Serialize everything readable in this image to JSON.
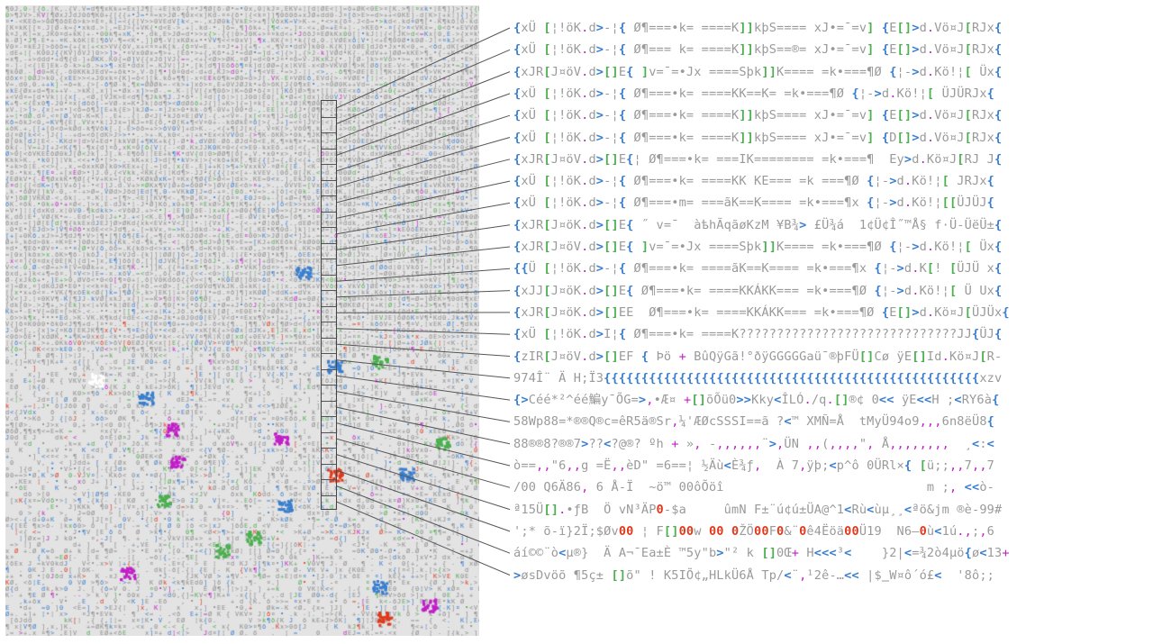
{
  "palette": {
    "grey": "#9a9a9a",
    "blue": "#3a7fcf",
    "green": "#4caf50",
    "purple": "#c21ec9",
    "red": "#e0381b"
  },
  "glyph_rows": [
    "{xÜ [¦!öK.d>-¦{ Ø¶===•k= ====K]]kþS==== xJ•=¯=v] {E[]>d.Vö¤J[RJx{",
    "{xÜ [¦!öK.d>-¦{ Ø¶=== k= ====K]]kþS==®= xJ•=¯=v] {E[]>d.Vö¤J[RJx{",
    "{xJR[J¤öV.d>[]E{ ]v=¯=•Jx ====Sþk]]K==== =k•===¶Ø {¦->d.Kö!¦[ Üx{",
    "{xÜ [¦!öK.d>-¦{ Ø¶===•k= ====KK==K= =k•===¶Ø {¦->d.Kö!¦[ ÜJÜRJx{",
    "{xÜ [¦!öK.d>-¦{ Ø¶===•k= ====K]]kþS==== xJ•=¯=v] {E[]>d.Vö¤J[RJx{",
    "{xÜ [¦!öK.d>-¦{ Ø¶===•k= ====K]]kþS==== xJ•=¯=v] {D[]>d.Vö¤J[RJx{",
    "{xJR[J¤öV.d>[]E{¦ Ø¶===•k= ===IK======== =k•===¶  Ey>d.Kö¤J[RJ J{",
    "{xÜ [¦!öK.d>-¦{ Ø¶===•k= ====KK KE=== =k ===¶Ø {¦->d.Kö!¦[ JRJx{",
    "{xÜ [¦!öK.d>-¦{ Ø¶===•m= ===ãK==K==== =k•===¶x {¦->d.Kö!¦[[ÜJÜJ{",
    "{xJR[J¤öK.d>[]E{ ˝ v=¯  àѣhÃqãøKzM ¥B¾> £Ü¾á  1¢Ü¢Î˝™Å§ f·Ü-ÜëÜ±{",
    "{xJR[J¤öV.d>[]E{ ]v=¯=•Jx ====Sþk]]K==== =k•===¶Ø {¦->d.Kö!¦[ Üx{",
    "{{Ü [¦!öK.d>-¦{ Ø¶===•k= ====ãK==K==== =k•===¶x {¦->d.K[! [ÜJÜ x{",
    "{xJJ[J¤öK.d>[]E{ Ø¶===•k= ====KKÁKK=== =k•===¶Ø {¦->d.Kö!¦[ Ü Ux{",
    "{xJR[J¤öK.d>[]EE  Ø¶===•k= ====KKÁKK=== =k•===¶Ø {E[]>d.Kö¤J[ÜJÜx{",
    "{xÜ [¦!öK.d>I¦{ Ø¶===•k= ====K?????????????????????????????JJ{ÜJ{",
    "{zIR[J¤öV.d>[]EF { Þö + BûQÿGã!°ðÿGGGGGaü¯®þFÜ[]Cø ÿE[]Id.Kö¤J[R-",
    "974Î¨ Ä H;Ï3{{{{{{{{{{{{{{{{{{{{{{{{{{{{{{{{{{{{{{{{{{{{{{{{{{xzv",
    "{>Céé*²^éé鯿y¯ÕG=>,•Æ¤ +[]õÕü0>>Kky<ÎLÓ./q.[]®¢ 0<< ÿE<<H ;<RY6à{",
    "58Wp88=*®®Q®c=êR5ä®Sr,¼'ÆØcSSSI==ã ?<™ XMÑ=Å  tMyÜ94o9,,,6n8ëÜ8{",
    "88®®8?®®7>??<?@®? ºh + », -,,,,,,¨>,ÜN ,,(,,,,\", Å,,,,,,,,  ¸<:<",
    "ò==,,\"6,,g =Ë,,èD\" =6==¦ ½Äù<È¾ƒ,  À 7,ÿþ;<p^ô 0ÜRl×{ [ü;;,,7,,7",
    "/00 Q6Ä86, 6 Å-Ï  ~ö™ 00ôÕöî                           m ;, <<ò-",
    "ª15Ü[].•ƒB  Ö vN³ÄP0-$a     ûmN F±¨ú¢ú±ÜA@^1<Rù<ùµ¸¸<ªö&jm ®è-99#",
    "';* õ-ï}2Ï;$Øv00 ¦ F[]00w 00 0ŽÖ00F0&¨0ê4Ëöä00Ü19  N6—0ù<1ú.,;,6",
    "áí©©¨ò<µ®}  Ä A¬¯Ea±È ™5y\"b>\"² k []0Œ+ H<<<³<    }2|<=¾2ò4µö{ø<13+",
    ">øsDvöõ ¶5ç± []õ\" ! K5IÕ¢„HLkÜ6Å Tp/<¨,¹2ê-…<< |$‗W¤ô´ó£<  '8ô;;"
  ]
}
